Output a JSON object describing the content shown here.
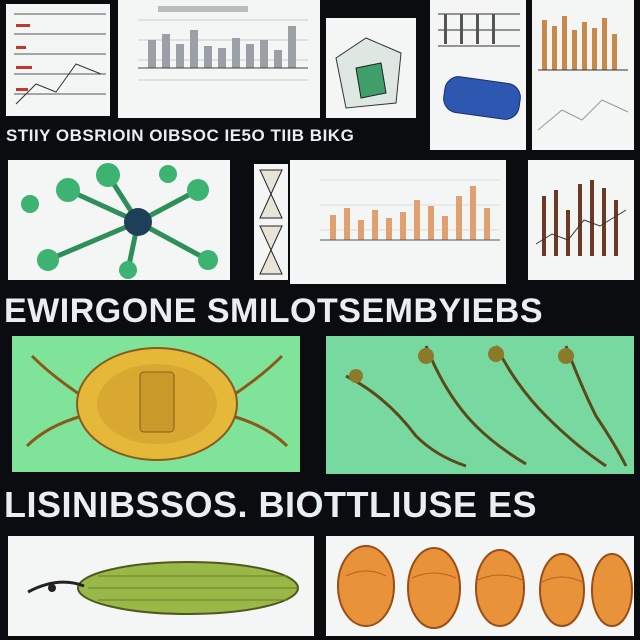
{
  "banners": {
    "top": "STIIY OBSRIOIN OIBSOC IE5O TIIB BIKG",
    "middle": "EWIRGONE SMILOTSEMBYIEBS",
    "bottom": "LISINIBSSOS. BIOTTLIUSE ES"
  },
  "colors": {
    "background": "#0b0c10",
    "panel": "#f4f6f5",
    "specimen_green": "#7fe39a",
    "bar_gray": "#9aa0a6",
    "bar_orange": "#e0a070",
    "bar_brown": "#6b3a24"
  },
  "panels": {
    "molecule": "molecule-illustration",
    "crab": "crab-specimen-illustration",
    "roots": "root-network-illustration",
    "fish": "elongated-fish-illustration",
    "shells": "shell-specimen-row"
  }
}
